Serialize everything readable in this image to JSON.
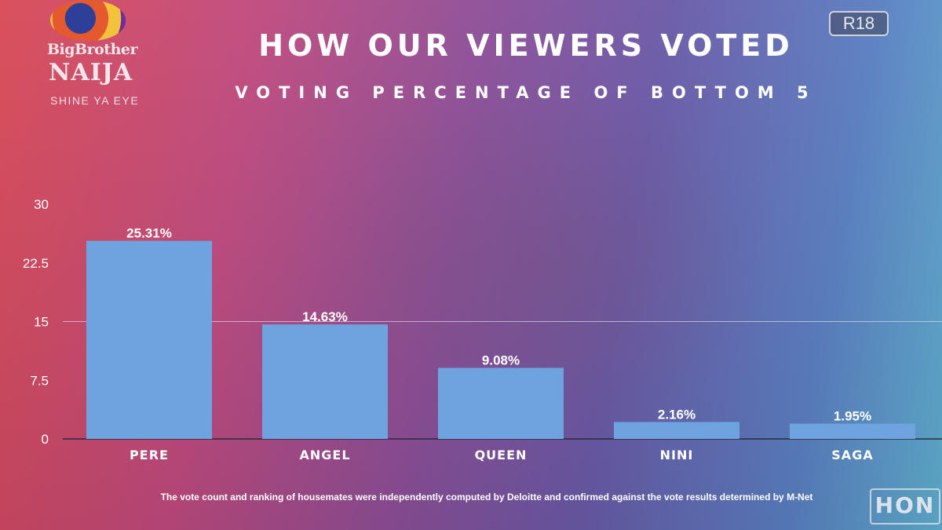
{
  "logo": {
    "line1": "BigBrother",
    "line2": "NAIJA",
    "line3": "SHINE YA EYE"
  },
  "rating_badge": "R18",
  "title": "HOW OUR VIEWERS VOTED",
  "subtitle": "VOTING PERCENTAGE OF BOTTOM 5",
  "footnote": "The vote count and ranking of housemates were independently computed by Deloitte and confirmed against the vote results determined by M-Net",
  "watermark": "HON",
  "colors": {
    "bar": "#6ea3e0",
    "gridline": "#d8d0e6",
    "baseline": "#2a2a3a"
  },
  "chart_data": {
    "type": "bar",
    "categories": [
      "PERE",
      "ANGEL",
      "QUEEN",
      "NINI",
      "SAGA"
    ],
    "values": [
      25.31,
      14.63,
      9.08,
      2.16,
      1.95
    ],
    "data_labels": [
      "25.31%",
      "14.63%",
      "9.08%",
      "2.16%",
      "1.95%"
    ],
    "yticks": [
      0,
      7.5,
      15,
      22.5,
      30
    ],
    "ytick_labels": [
      "0",
      "7.5",
      "15",
      "22.5",
      "30"
    ],
    "ylim": [
      0,
      30
    ],
    "gridlines": [
      15
    ],
    "title": "",
    "xlabel": "",
    "ylabel": ""
  }
}
